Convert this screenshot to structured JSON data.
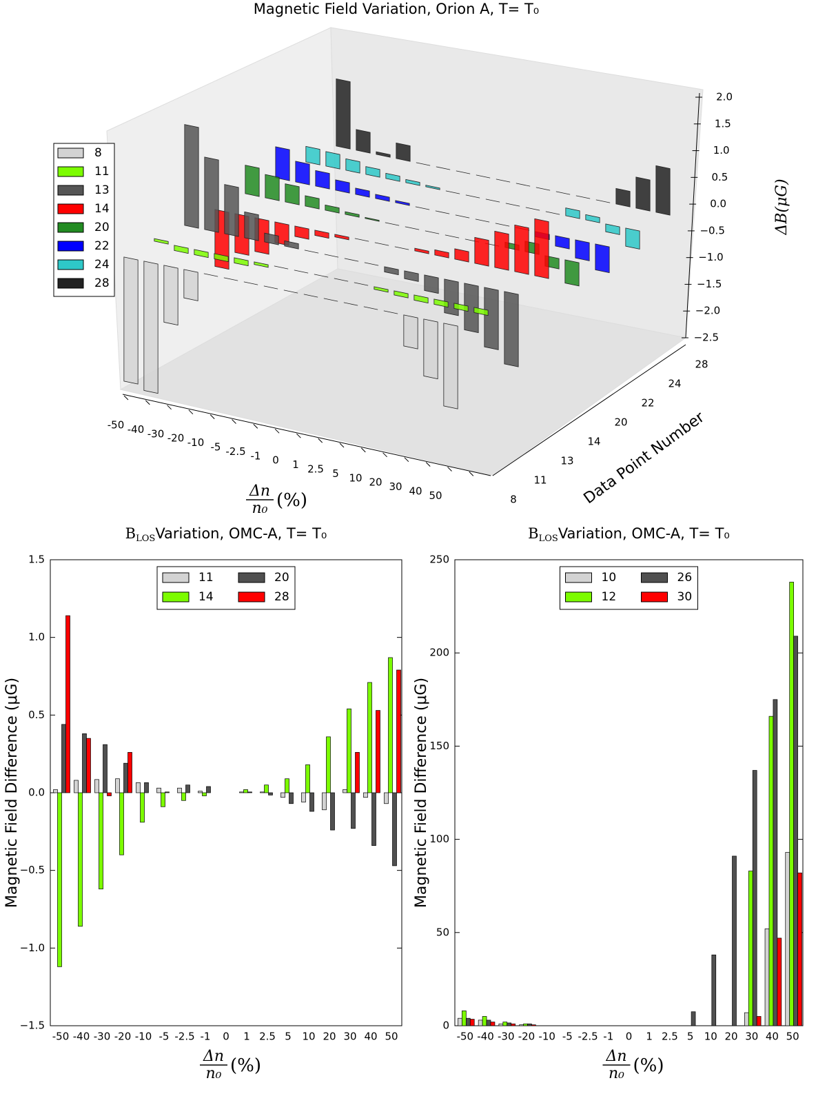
{
  "chart_data": [
    {
      "type": "bar3d",
      "title": "Magnetic Field Variation, Orion A, T= T₀",
      "xlabel": {
        "num": "Δn",
        "den": "n₀",
        "unit": "(%)"
      },
      "ylabel": "Data Point Number",
      "zlabel": "ΔB(μG)",
      "categories": [
        "-50",
        "-40",
        "-30",
        "-20",
        "-10",
        "-5",
        "-2.5",
        "-1",
        "0",
        "1",
        "2.5",
        "5",
        "10",
        "20",
        "30",
        "40",
        "50"
      ],
      "zlim": [
        -2.5,
        2.0
      ],
      "zticks": [
        {
          "value": -2.5,
          "label": "−2.5"
        },
        {
          "value": -2,
          "label": "−2.0"
        },
        {
          "value": -1.5,
          "label": "−1.5"
        },
        {
          "value": -1,
          "label": "−1.0"
        },
        {
          "value": -0.5,
          "label": "−0.5"
        },
        {
          "value": 0,
          "label": "0.0"
        },
        0.5,
        {
          "value": 1,
          "label": "1.0"
        },
        1.5,
        {
          "value": 2,
          "label": "2.0"
        }
      ],
      "legend": "upper left",
      "series": [
        {
          "name": "8",
          "color": "#d3d3d3",
          "values": [
            -2.4,
            -2.5,
            -1.1,
            -0.55,
            0,
            0,
            0,
            0,
            0,
            0,
            0,
            0,
            0,
            0,
            -0.6,
            -1.1,
            -1.6
          ]
        },
        {
          "name": "11",
          "color": "#7cfc00",
          "values": [
            0.05,
            -0.1,
            -0.1,
            -0.1,
            -0.1,
            -0.05,
            0,
            0,
            0,
            0,
            0,
            -0.05,
            -0.08,
            -0.1,
            -0.1,
            -0.1,
            -0.1
          ]
        },
        {
          "name": "13",
          "color": "#555555",
          "values": [
            1.95,
            1.4,
            0.95,
            0.5,
            0.17,
            0.1,
            0,
            0,
            0,
            0,
            -0.1,
            -0.15,
            -0.3,
            -0.65,
            -0.9,
            -1.15,
            -1.4
          ]
        },
        {
          "name": "14",
          "color": "#ff0000",
          "values": [
            -1.1,
            -0.75,
            -0.65,
            -0.4,
            -0.2,
            -0.1,
            -0.05,
            0,
            0,
            0,
            0.05,
            0.1,
            0.2,
            0.5,
            0.7,
            0.9,
            1.1
          ]
        },
        {
          "name": "20",
          "color": "#228b22",
          "values": [
            0.55,
            0.45,
            0.35,
            0.2,
            0.1,
            0.05,
            0.02,
            0,
            0,
            0,
            0,
            0,
            0,
            0.1,
            0.2,
            -0.2,
            -0.45
          ]
        },
        {
          "name": "22",
          "color": "#0000ff",
          "values": [
            0.6,
            0.4,
            0.3,
            0.2,
            0.12,
            0.08,
            0.04,
            0,
            0,
            0,
            0,
            0,
            0,
            -0.1,
            -0.2,
            -0.35,
            -0.5
          ]
        },
        {
          "name": "24",
          "color": "#2ec8c8",
          "values": [
            0.3,
            0.28,
            0.22,
            0.15,
            0.1,
            0.06,
            0.03,
            0,
            0,
            0,
            0,
            0,
            0,
            0.15,
            0.1,
            -0.15,
            -0.35
          ]
        },
        {
          "name": "28",
          "color": "#222222",
          "values": [
            1.3,
            0.4,
            0.05,
            0.3,
            0,
            0,
            0,
            0,
            0,
            0,
            0,
            0,
            0,
            0,
            0.3,
            0.6,
            0.9
          ]
        }
      ]
    },
    {
      "type": "bar",
      "title": {
        "main": "B",
        "sub": "LOS",
        "rest": "Variation, OMC-A, T= T₀"
      },
      "xlabel": {
        "num": "Δn",
        "den": "n₀",
        "unit": "(%)"
      },
      "ylabel": "Magnetic Field Difference (μG)",
      "categories": [
        "-50",
        "-40",
        "-30",
        "-20",
        "-10",
        "-5",
        "-2.5",
        "-1",
        "0",
        "1",
        "2.5",
        "5",
        "10",
        "20",
        "30",
        "40",
        "50"
      ],
      "ylim": [
        -1.5,
        1.5
      ],
      "yticks": [
        {
          "value": -1.5,
          "label": "−1.5"
        },
        {
          "value": -1,
          "label": "−1.0"
        },
        {
          "value": -0.5,
          "label": "−0.5"
        },
        {
          "value": 0,
          "label": "0.0"
        },
        0.5,
        {
          "value": 1,
          "label": "1.0"
        },
        1.5
      ],
      "legend": "upper center",
      "series": [
        {
          "name": "11",
          "color": "#d3d3d3",
          "values": [
            0.02,
            0.08,
            0.085,
            0.09,
            0.065,
            0.03,
            0.03,
            0.01,
            0,
            0.005,
            0.005,
            -0.03,
            -0.06,
            -0.11,
            0.02,
            -0.03,
            -0.07
          ]
        },
        {
          "name": "14",
          "color": "#7cfc00",
          "values": [
            -1.12,
            -0.86,
            -0.62,
            -0.4,
            -0.19,
            -0.09,
            -0.05,
            -0.02,
            0,
            0.02,
            0.05,
            0.09,
            0.18,
            0.36,
            0.54,
            0.71,
            0.87
          ]
        },
        {
          "name": "20",
          "color": "#505050",
          "values": [
            0.44,
            0.38,
            0.31,
            0.19,
            0.065,
            0.005,
            0.05,
            0.04,
            0,
            0.005,
            -0.015,
            -0.07,
            -0.12,
            -0.24,
            -0.23,
            -0.34,
            -0.47
          ]
        },
        {
          "name": "28",
          "color": "#ff0000",
          "values": [
            1.14,
            0.35,
            -0.02,
            0.26,
            0,
            0,
            0,
            0,
            0,
            0,
            0,
            0,
            0,
            0,
            0.26,
            0.53,
            0.79
          ]
        }
      ]
    },
    {
      "type": "bar",
      "title": {
        "main": "B",
        "sub": "LOS",
        "rest": "Variation, OMC-A, T= T₀"
      },
      "xlabel": {
        "num": "Δn",
        "den": "n₀",
        "unit": "(%)"
      },
      "ylabel": "Magnetic Field Difference (μG)",
      "categories": [
        "-50",
        "-40",
        "-30",
        "-20",
        "-10",
        "-5",
        "-2.5",
        "-1",
        "0",
        "1",
        "2.5",
        "5",
        "10",
        "20",
        "30",
        "40",
        "50"
      ],
      "ylim": [
        0,
        250
      ],
      "yticks": [
        0,
        50,
        100,
        150,
        200,
        250
      ],
      "legend": "upper center",
      "series": [
        {
          "name": "10",
          "color": "#d3d3d3",
          "values": [
            4,
            3,
            1,
            0.5,
            0,
            0,
            0,
            0,
            0,
            0,
            0,
            0,
            0,
            0,
            7,
            52,
            93
          ]
        },
        {
          "name": "12",
          "color": "#7cfc00",
          "values": [
            8,
            5,
            2,
            1,
            0,
            0,
            0,
            0,
            0,
            0,
            0,
            0,
            0,
            0,
            83,
            166,
            238
          ]
        },
        {
          "name": "26",
          "color": "#505050",
          "values": [
            4,
            3,
            1.5,
            1,
            0,
            0,
            0,
            0,
            0,
            0,
            0,
            7.5,
            38,
            91,
            137,
            175,
            209
          ]
        },
        {
          "name": "30",
          "color": "#ff0000",
          "values": [
            3.5,
            2,
            1,
            0.5,
            0,
            0,
            0,
            0,
            0,
            0,
            0,
            0,
            0,
            0,
            5,
            47,
            82
          ]
        }
      ]
    }
  ]
}
